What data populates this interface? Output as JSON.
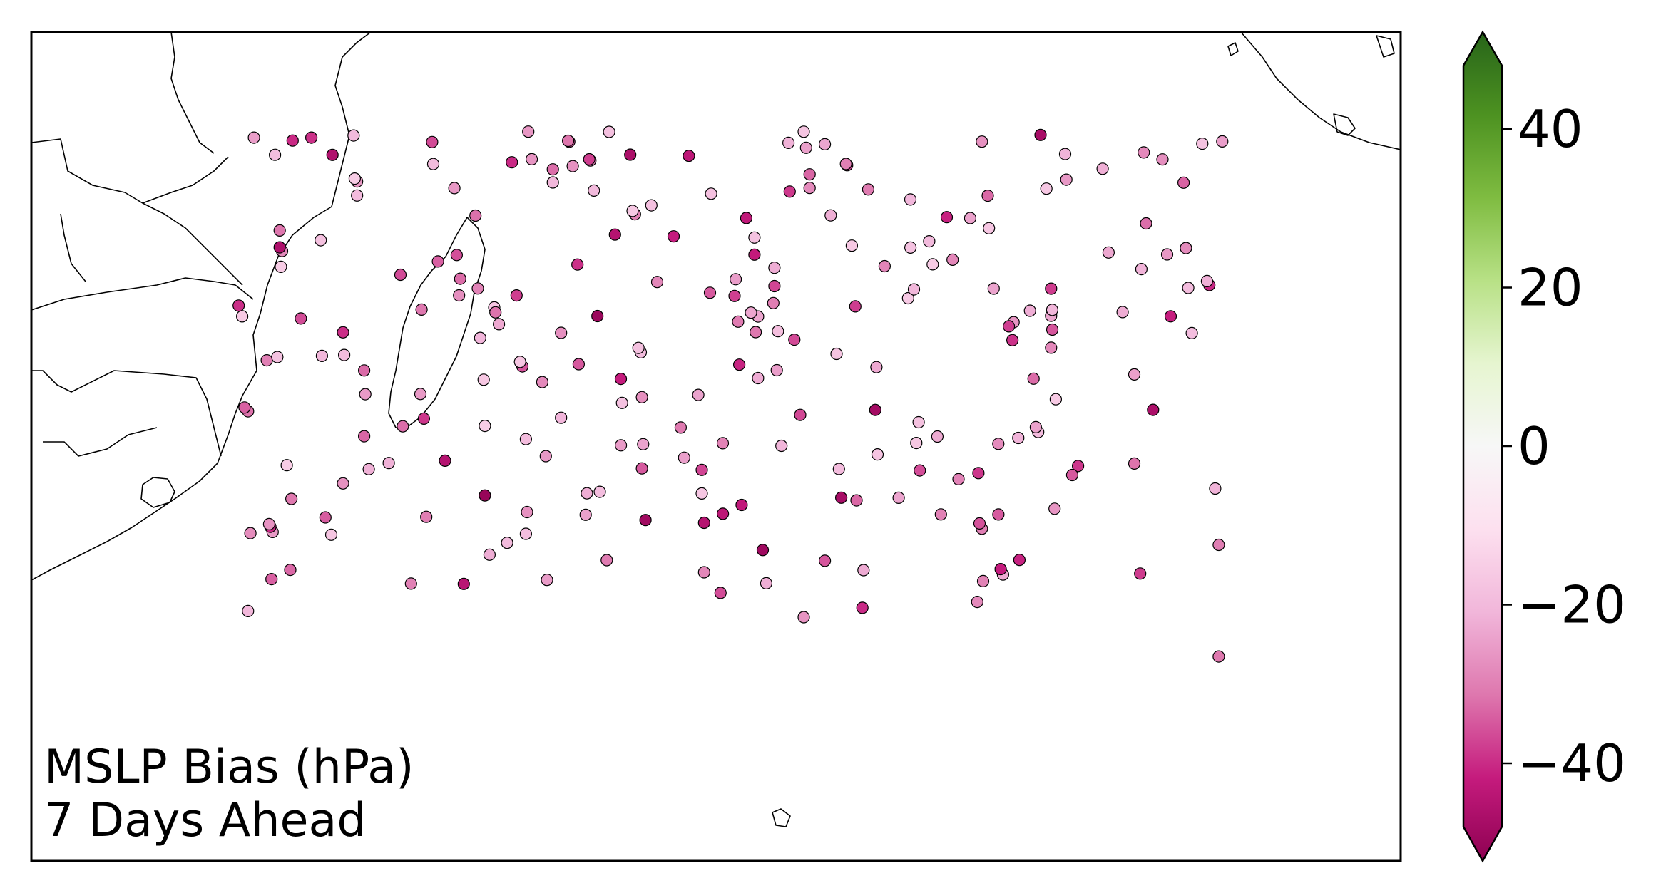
{
  "chart_data": {
    "type": "scatter",
    "annotation": [
      "MSLP Bias (hPa)",
      "7 Days Ahead"
    ],
    "colorbar": {
      "ticks": [
        40,
        20,
        0,
        -20,
        -40
      ],
      "tick_labels": [
        "40",
        "20",
        "0",
        "−20",
        "−40"
      ],
      "range": [
        -48,
        48
      ],
      "extend": "both",
      "colormap": "PiYG",
      "stops": [
        "#8e0152",
        "#c51b7d",
        "#de77ae",
        "#f1b6da",
        "#fde0ef",
        "#f7f7f7",
        "#e6f5d0",
        "#b8e186",
        "#7fbc41",
        "#4d9221",
        "#276419"
      ]
    },
    "grid": false,
    "points": [
      [
        -28.5,
        26
      ],
      [
        -27.6,
        32
      ],
      [
        -25.8,
        31
      ],
      [
        -24.4,
        40
      ],
      [
        -23.5,
        36
      ],
      [
        -22.0,
        10
      ],
      [
        -22.8,
        21
      ],
      [
        -21.6,
        30
      ],
      [
        -20.5,
        37
      ],
      [
        -19.8,
        24
      ],
      [
        -18.9,
        33
      ],
      [
        -17.8,
        28
      ],
      [
        -16.5,
        39
      ],
      [
        -21.2,
        44
      ],
      [
        -18.0,
        42
      ],
      [
        -16.8,
        46
      ],
      [
        -19.8,
        15
      ],
      [
        -22.5,
        35
      ],
      [
        -26.3,
        39
      ],
      [
        -27.5,
        47
      ],
      [
        -24.0,
        48
      ],
      [
        -19.5,
        49
      ],
      [
        -17.5,
        51
      ],
      [
        -16.5,
        53
      ],
      [
        -17.2,
        55
      ],
      [
        -18.4,
        57
      ],
      [
        -20.0,
        56
      ],
      [
        -22.2,
        51
      ],
      [
        -23.6,
        53
      ],
      [
        -25.2,
        52
      ],
      [
        -27.0,
        50
      ],
      [
        -28.0,
        49
      ],
      [
        -30.0,
        50
      ],
      [
        -27.6,
        59
      ],
      [
        -26.0,
        57
      ],
      [
        -24.7,
        60
      ],
      [
        -22.7,
        62
      ],
      [
        -20.9,
        62
      ],
      [
        -19.6,
        61
      ],
      [
        -18.2,
        63
      ],
      [
        -16.9,
        62
      ],
      [
        -15.8,
        63
      ],
      [
        -14.1,
        58
      ],
      [
        -14.8,
        64
      ],
      [
        -15.4,
        66
      ],
      [
        -17.6,
        67
      ],
      [
        -19.0,
        68
      ],
      [
        -20.5,
        70
      ],
      [
        -21.8,
        72
      ],
      [
        -23.6,
        71
      ],
      [
        -25.0,
        73
      ],
      [
        -26.4,
        72
      ],
      [
        -27.7,
        74
      ],
      [
        -29.2,
        73
      ],
      [
        -30.6,
        75
      ],
      [
        -32.3,
        74
      ],
      [
        -33.4,
        76
      ],
      [
        -34.9,
        72
      ],
      [
        -36.2,
        73
      ],
      [
        -37.5,
        71
      ],
      [
        -38.8,
        70
      ],
      [
        -37.1,
        66
      ],
      [
        -35.5,
        66
      ],
      [
        -33.8,
        67
      ],
      [
        -32.6,
        68
      ],
      [
        -31.2,
        69
      ],
      [
        -29.8,
        66
      ],
      [
        -28.6,
        66
      ],
      [
        -27.2,
        68
      ],
      [
        -25.8,
        67
      ],
      [
        -24.3,
        66
      ],
      [
        -23.0,
        67
      ],
      [
        -21.7,
        66
      ],
      [
        -20.4,
        65
      ],
      [
        -19.2,
        64
      ],
      [
        -18.0,
        66
      ],
      [
        -16.8,
        68
      ],
      [
        -15.6,
        70
      ],
      [
        -14.6,
        72
      ],
      [
        -14.1,
        75
      ],
      [
        -15.2,
        77
      ],
      [
        -16.6,
        79
      ],
      [
        -17.8,
        80
      ],
      [
        -19.2,
        81
      ],
      [
        -20.6,
        82
      ],
      [
        -22.1,
        82
      ],
      [
        -23.4,
        83
      ],
      [
        -24.8,
        81
      ],
      [
        -26.0,
        80
      ],
      [
        -27.3,
        80
      ],
      [
        -28.8,
        80
      ],
      [
        -30.3,
        81
      ],
      [
        -31.9,
        82
      ],
      [
        -33.5,
        83
      ],
      [
        -35.0,
        84
      ],
      [
        -36.7,
        85
      ],
      [
        -38.2,
        82
      ],
      [
        -39.3,
        84
      ],
      [
        -41.2,
        84
      ],
      [
        -43.0,
        83
      ],
      [
        -44.8,
        82
      ],
      [
        -38.4,
        88
      ],
      [
        -36.5,
        89
      ],
      [
        -35.0,
        90
      ],
      [
        -33.2,
        90
      ],
      [
        -31.8,
        91
      ],
      [
        -30.2,
        92
      ],
      [
        -28.7,
        92
      ],
      [
        -27.3,
        93
      ],
      [
        -25.8,
        93
      ],
      [
        -24.2,
        94
      ],
      [
        -22.9,
        95
      ],
      [
        -21.5,
        95
      ],
      [
        -20.2,
        96
      ],
      [
        -18.8,
        97
      ],
      [
        -17.4,
        98
      ],
      [
        -16.0,
        100
      ],
      [
        -15.0,
        99
      ],
      [
        -14.2,
        102
      ],
      [
        -15.5,
        103
      ],
      [
        -16.9,
        104
      ],
      [
        -18.1,
        105
      ],
      [
        -19.6,
        106
      ],
      [
        -21.0,
        107
      ],
      [
        -22.4,
        108
      ],
      [
        -23.8,
        108
      ],
      [
        -25.2,
        109
      ],
      [
        -26.6,
        110
      ],
      [
        -28.0,
        111
      ],
      [
        -29.4,
        111
      ],
      [
        -30.9,
        112
      ],
      [
        -32.4,
        112
      ],
      [
        -33.9,
        113
      ],
      [
        -35.4,
        112
      ],
      [
        -36.9,
        113
      ],
      [
        -38.3,
        111
      ],
      [
        -39.8,
        110
      ],
      [
        -41.2,
        109
      ],
      [
        -42.4,
        111
      ],
      [
        -43.6,
        113
      ],
      [
        -37.2,
        116
      ],
      [
        -35.6,
        117
      ],
      [
        -34.2,
        117
      ],
      [
        -32.6,
        118
      ],
      [
        -31.2,
        118
      ],
      [
        -29.6,
        119
      ],
      [
        -28.1,
        120
      ],
      [
        -26.7,
        121
      ],
      [
        -25.2,
        121
      ],
      [
        -23.7,
        122
      ],
      [
        -22.2,
        122
      ],
      [
        -20.8,
        123
      ],
      [
        -19.3,
        124
      ],
      [
        -17.9,
        125
      ],
      [
        -16.5,
        126
      ],
      [
        -15.1,
        127
      ],
      [
        -14.2,
        128
      ],
      [
        -15.4,
        130
      ],
      [
        -16.8,
        131
      ],
      [
        -18.2,
        131
      ],
      [
        -19.7,
        132
      ],
      [
        -21.1,
        133
      ],
      [
        -22.6,
        133
      ],
      [
        -24.0,
        134
      ],
      [
        -25.5,
        135
      ],
      [
        -26.9,
        136
      ],
      [
        -28.4,
        137
      ],
      [
        -29.8,
        138
      ],
      [
        -31.2,
        138
      ],
      [
        -32.7,
        139
      ],
      [
        -34.1,
        140
      ],
      [
        -35.6,
        141
      ],
      [
        -37.0,
        141
      ],
      [
        -38.5,
        142
      ],
      [
        -39.9,
        143
      ],
      [
        -41.3,
        144
      ],
      [
        -42.8,
        145
      ],
      [
        -44.2,
        146
      ],
      [
        -45.7,
        147
      ],
      [
        -36.1,
        150
      ],
      [
        -34.6,
        151
      ],
      [
        -33.0,
        152
      ],
      [
        -31.5,
        152
      ],
      [
        -30.0,
        153
      ],
      [
        -28.6,
        154
      ],
      [
        -27.1,
        155
      ],
      [
        -25.7,
        156
      ],
      [
        -24.2,
        156
      ],
      [
        -22.8,
        157
      ],
      [
        -21.3,
        158
      ],
      [
        -19.9,
        159
      ],
      [
        -18.4,
        160
      ],
      [
        -16.9,
        161
      ],
      [
        -15.5,
        161
      ],
      [
        -14.6,
        162
      ],
      [
        -15.8,
        164
      ],
      [
        -17.3,
        165
      ],
      [
        -18.7,
        166
      ],
      [
        -20.2,
        166
      ],
      [
        -21.6,
        167
      ],
      [
        -23.1,
        168
      ],
      [
        -24.5,
        169
      ],
      [
        -26.0,
        170
      ],
      [
        -27.5,
        170
      ],
      [
        -28.9,
        171
      ],
      [
        -30.4,
        172
      ],
      [
        -31.8,
        173
      ],
      [
        -33.3,
        174
      ],
      [
        -34.8,
        174
      ],
      [
        -36.2,
        175
      ],
      [
        -37.7,
        176
      ],
      [
        -39.1,
        177
      ],
      [
        -40.6,
        178
      ],
      [
        -42.0,
        178
      ],
      [
        -43.5,
        179
      ],
      [
        -45.0,
        180
      ],
      [
        -46.4,
        181
      ],
      [
        -14.0,
        168
      ],
      [
        -15.2,
        171
      ],
      [
        -16.5,
        173
      ],
      [
        -17.9,
        175
      ],
      [
        -19.3,
        176
      ],
      [
        -20.7,
        178
      ],
      [
        -22.1,
        180
      ],
      [
        -23.5,
        181
      ],
      [
        -24.9,
        183
      ],
      [
        -26.3,
        184
      ],
      [
        -27.7,
        185
      ],
      [
        -29.1,
        186
      ],
      [
        -30.5,
        187
      ],
      [
        -31.9,
        188
      ],
      [
        -33.3,
        189
      ],
      [
        -34.7,
        190
      ],
      [
        -16.0,
        190
      ],
      [
        -17.5,
        191
      ],
      [
        -19.0,
        192
      ],
      [
        -20.4,
        193
      ],
      [
        -21.9,
        193
      ],
      [
        -23.3,
        194
      ],
      [
        -24.8,
        195
      ],
      [
        -26.2,
        196
      ],
      [
        -27.7,
        197
      ],
      [
        -29.1,
        198
      ],
      [
        -30.6,
        198
      ],
      [
        -32.0,
        199
      ],
      [
        -33.5,
        200
      ],
      [
        -34.9,
        201
      ],
      [
        -36.4,
        202
      ],
      [
        -37.8,
        203
      ]
    ]
  }
}
